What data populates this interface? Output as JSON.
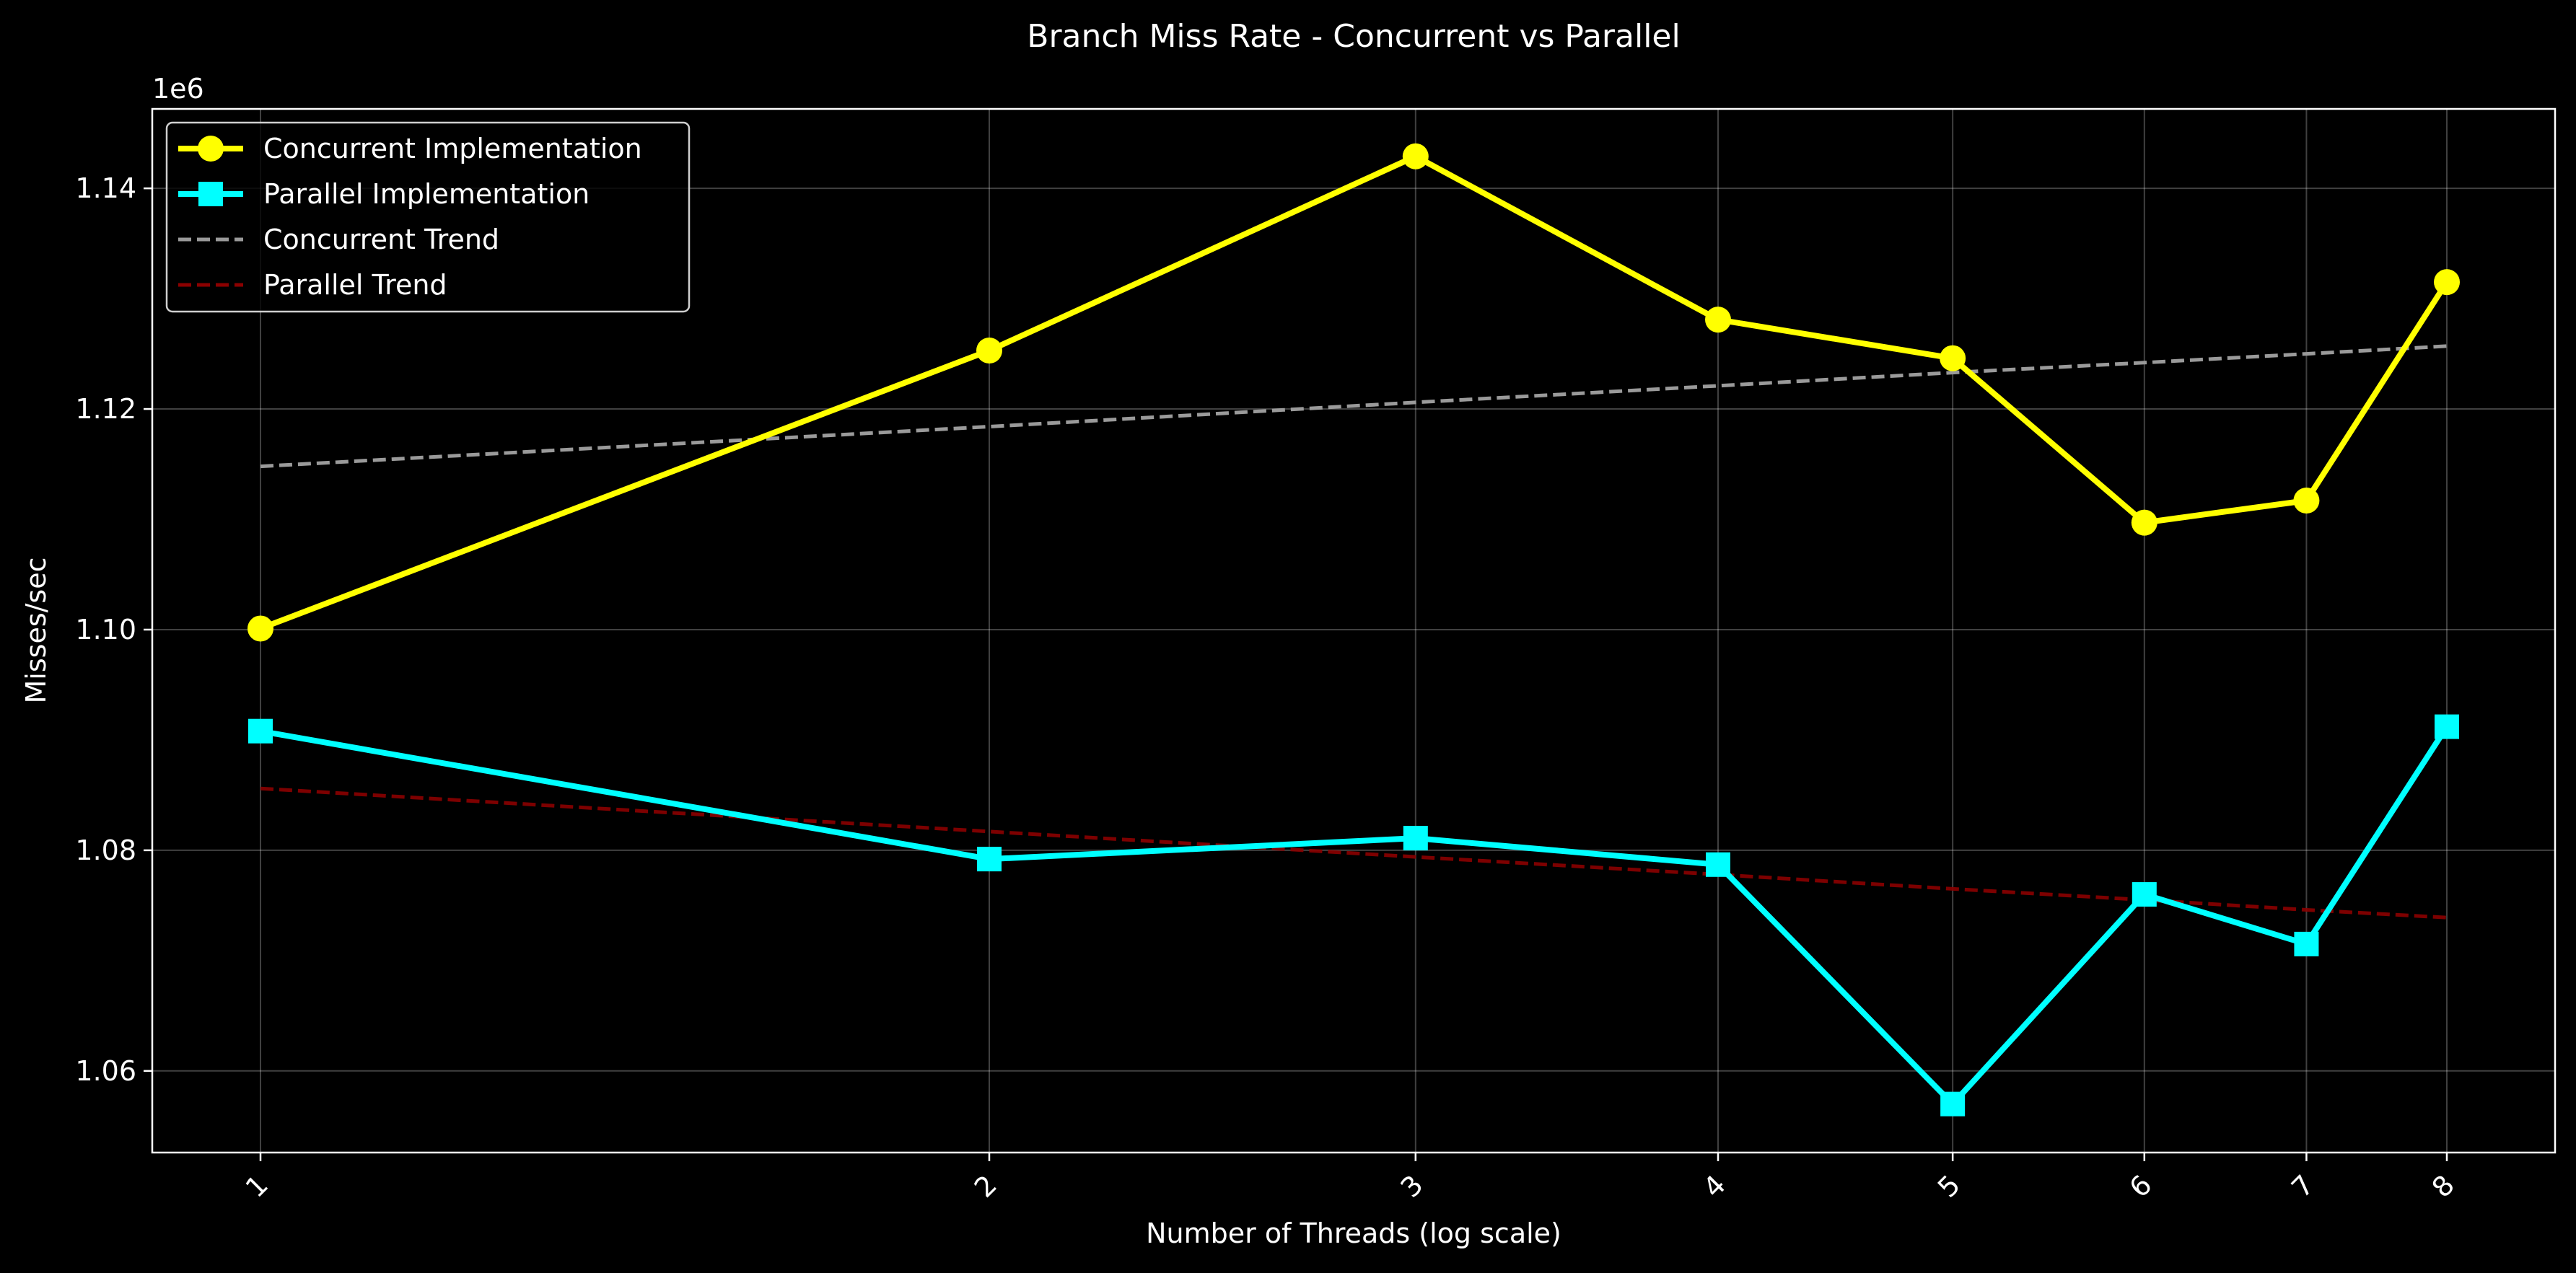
{
  "chart_data": {
    "type": "line",
    "title": "Branch Miss Rate - Concurrent vs Parallel",
    "xlabel": "Number of Threads (log scale)",
    "ylabel": "Misses/sec",
    "x_scale": "log",
    "y_offset_label": "1e6",
    "x": [
      1,
      2,
      3,
      4,
      5,
      6,
      7,
      8
    ],
    "x_tick_labels": [
      "1",
      "2",
      "3",
      "4",
      "5",
      "6",
      "7",
      "8"
    ],
    "y_ticks": [
      1.06,
      1.08,
      1.1,
      1.12,
      1.14
    ],
    "y_tick_labels": [
      "1.06",
      "1.08",
      "1.10",
      "1.12",
      "1.14"
    ],
    "ylim": [
      1.0526,
      1.1472
    ],
    "grid": true,
    "legend_position": "top-left",
    "series": [
      {
        "name": "Concurrent Implementation",
        "color": "#ffff00",
        "marker": "circle",
        "style": "solid",
        "values": [
          1.1001,
          1.1253,
          1.1429,
          1.1281,
          1.1246,
          1.1097,
          1.1117,
          1.1315
        ]
      },
      {
        "name": "Parallel Implementation",
        "color": "#00ffff",
        "marker": "square",
        "style": "solid",
        "values": [
          1.0908,
          1.0792,
          1.0811,
          1.0787,
          1.057,
          1.076,
          1.0715,
          1.0912
        ]
      },
      {
        "name": "Concurrent Trend",
        "color": "#9a9a9a",
        "marker": "none",
        "style": "dashed",
        "values": [
          1.1148,
          1.1184,
          1.1206,
          1.1221,
          1.1233,
          1.1242,
          1.125,
          1.1257
        ]
      },
      {
        "name": "Parallel Trend",
        "color": "#8b0000",
        "marker": "none",
        "style": "dashed",
        "values": [
          1.0856,
          1.0817,
          1.0794,
          1.0778,
          1.0765,
          1.0755,
          1.0746,
          1.0739
        ]
      }
    ]
  }
}
